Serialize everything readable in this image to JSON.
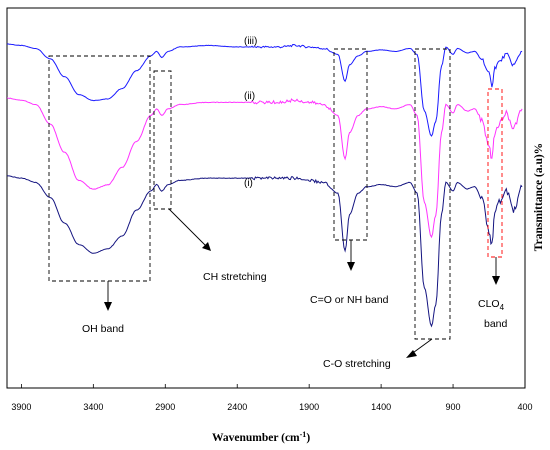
{
  "chart_data": {
    "type": "line",
    "xlabel": "Wavenumber (cm",
    "xlabel_sup": "-1",
    "xlabel_close": ")",
    "ylabel": "Transmittance (a.u)%",
    "xlim": [
      4000,
      400
    ],
    "x_reversed": true,
    "x_ticks": [
      3900,
      3400,
      2900,
      2400,
      1900,
      1400,
      900,
      400
    ],
    "grid": false,
    "series": [
      {
        "name": "(iii)",
        "color": "#1a1aff",
        "points": [
          [
            4000,
            100
          ],
          [
            3900,
            99
          ],
          [
            3800,
            97
          ],
          [
            3700,
            90
          ],
          [
            3600,
            78
          ],
          [
            3500,
            66
          ],
          [
            3400,
            62
          ],
          [
            3300,
            63
          ],
          [
            3200,
            70
          ],
          [
            3100,
            82
          ],
          [
            3000,
            92
          ],
          [
            2960,
            95
          ],
          [
            2925,
            91
          ],
          [
            2880,
            95
          ],
          [
            2800,
            98
          ],
          [
            2600,
            99
          ],
          [
            2400,
            98
          ],
          [
            2100,
            98
          ],
          [
            2000,
            99
          ],
          [
            1900,
            98
          ],
          [
            1800,
            97
          ],
          [
            1700,
            93
          ],
          [
            1650,
            75
          ],
          [
            1620,
            86
          ],
          [
            1560,
            92
          ],
          [
            1500,
            95
          ],
          [
            1400,
            96
          ],
          [
            1300,
            95
          ],
          [
            1200,
            97
          ],
          [
            1150,
            93
          ],
          [
            1100,
            55
          ],
          [
            1050,
            38
          ],
          [
            1020,
            48
          ],
          [
            980,
            85
          ],
          [
            950,
            98
          ],
          [
            900,
            93
          ],
          [
            870,
            97
          ],
          [
            800,
            94
          ],
          [
            750,
            95
          ],
          [
            700,
            90
          ],
          [
            650,
            80
          ],
          [
            630,
            72
          ],
          [
            610,
            84
          ],
          [
            580,
            88
          ],
          [
            530,
            93
          ],
          [
            480,
            86
          ],
          [
            420,
            95
          ]
        ]
      },
      {
        "name": "(ii)",
        "color": "#ff33ff",
        "points": [
          [
            4000,
            100
          ],
          [
            3900,
            99
          ],
          [
            3800,
            97
          ],
          [
            3700,
            88
          ],
          [
            3600,
            75
          ],
          [
            3500,
            62
          ],
          [
            3400,
            58
          ],
          [
            3300,
            60
          ],
          [
            3200,
            68
          ],
          [
            3100,
            80
          ],
          [
            3000,
            92
          ],
          [
            2960,
            95
          ],
          [
            2925,
            92
          ],
          [
            2880,
            95
          ],
          [
            2800,
            97
          ],
          [
            2600,
            98
          ],
          [
            2400,
            98
          ],
          [
            2100,
            98
          ],
          [
            2000,
            99
          ],
          [
            1900,
            98
          ],
          [
            1800,
            97
          ],
          [
            1700,
            92
          ],
          [
            1650,
            72
          ],
          [
            1620,
            84
          ],
          [
            1560,
            92
          ],
          [
            1500,
            95
          ],
          [
            1400,
            96
          ],
          [
            1300,
            95
          ],
          [
            1200,
            97
          ],
          [
            1150,
            92
          ],
          [
            1100,
            52
          ],
          [
            1050,
            36
          ],
          [
            1020,
            46
          ],
          [
            980,
            84
          ],
          [
            950,
            97
          ],
          [
            900,
            93
          ],
          [
            870,
            97
          ],
          [
            800,
            94
          ],
          [
            750,
            95
          ],
          [
            700,
            90
          ],
          [
            650,
            78
          ],
          [
            630,
            72
          ],
          [
            610,
            84
          ],
          [
            580,
            88
          ],
          [
            530,
            93
          ],
          [
            480,
            86
          ],
          [
            420,
            95
          ]
        ]
      },
      {
        "name": "(i)",
        "color": "#141480",
        "points": [
          [
            4000,
            100
          ],
          [
            3900,
            99
          ],
          [
            3800,
            97
          ],
          [
            3700,
            90
          ],
          [
            3600,
            78
          ],
          [
            3500,
            68
          ],
          [
            3400,
            64
          ],
          [
            3300,
            66
          ],
          [
            3200,
            72
          ],
          [
            3100,
            84
          ],
          [
            3000,
            93
          ],
          [
            2960,
            96
          ],
          [
            2925,
            93
          ],
          [
            2880,
            96
          ],
          [
            2800,
            98
          ],
          [
            2600,
            99
          ],
          [
            2400,
            99
          ],
          [
            2100,
            99
          ],
          [
            2000,
            99
          ],
          [
            1900,
            98
          ],
          [
            1800,
            97
          ],
          [
            1700,
            92
          ],
          [
            1650,
            65
          ],
          [
            1620,
            82
          ],
          [
            1560,
            92
          ],
          [
            1500,
            95
          ],
          [
            1400,
            96
          ],
          [
            1300,
            95
          ],
          [
            1200,
            97
          ],
          [
            1150,
            92
          ],
          [
            1100,
            48
          ],
          [
            1050,
            30
          ],
          [
            1020,
            40
          ],
          [
            980,
            82
          ],
          [
            950,
            97
          ],
          [
            900,
            93
          ],
          [
            870,
            97
          ],
          [
            800,
            94
          ],
          [
            750,
            95
          ],
          [
            700,
            90
          ],
          [
            650,
            74
          ],
          [
            630,
            68
          ],
          [
            610,
            82
          ],
          [
            580,
            88
          ],
          [
            530,
            93
          ],
          [
            480,
            84
          ],
          [
            420,
            95
          ]
        ]
      }
    ],
    "annotations": [
      {
        "text": "OH band"
      },
      {
        "text": "CH stretching"
      },
      {
        "text": "C=O or NH band"
      },
      {
        "text": "C-O stretching"
      },
      {
        "text": "CLO",
        "sub": "4"
      },
      {
        "text": "band"
      }
    ]
  }
}
